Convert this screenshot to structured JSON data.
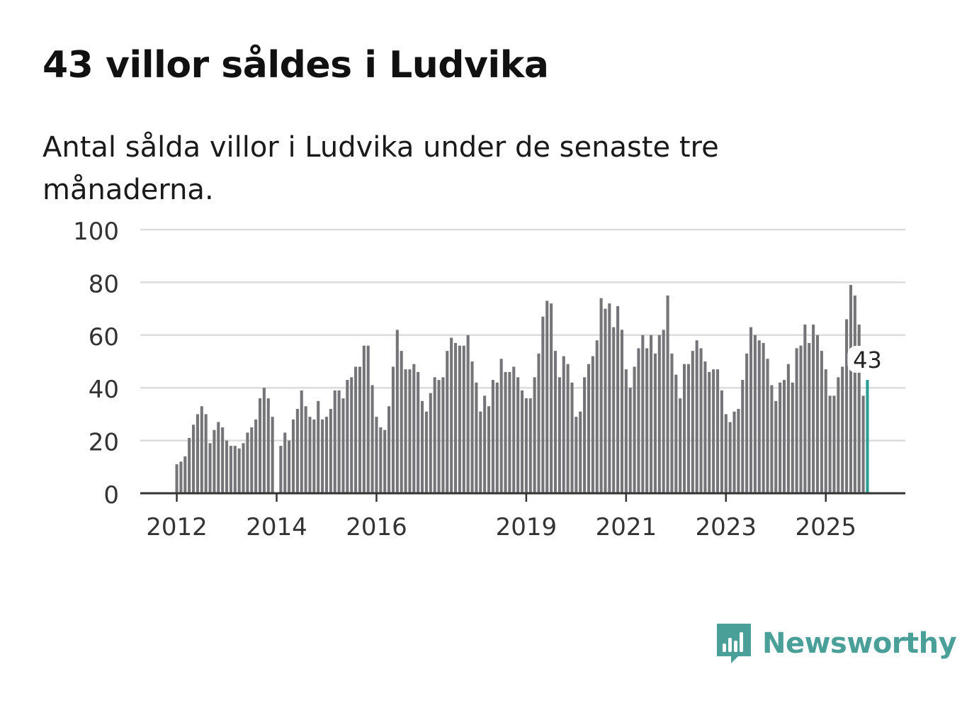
{
  "title": "43 villor såldes i Ludvika",
  "subtitle": "Antal sålda villor i Ludvika under de senaste tre månaderna.",
  "brand": {
    "name": "Newsworthy"
  },
  "colors": {
    "bar": "#747479",
    "highlight": "#2a9d95",
    "grid": "#dcdcdc",
    "axis": "#333333",
    "brand": "#4a9f98"
  },
  "chart_data": {
    "type": "bar",
    "title": "43 villor såldes i Ludvika",
    "subtitle": "Antal sålda villor i Ludvika under de senaste tre månaderna.",
    "xlabel": "",
    "ylabel": "",
    "ylim": [
      0,
      100
    ],
    "yticks": [
      0,
      20,
      40,
      60,
      80,
      100
    ],
    "xticks": [
      {
        "label": "2012",
        "index": 0
      },
      {
        "label": "2014",
        "index": 24
      },
      {
        "label": "2016",
        "index": 48
      },
      {
        "label": "2019",
        "index": 84
      },
      {
        "label": "2021",
        "index": 108
      },
      {
        "label": "2023",
        "index": 132
      },
      {
        "label": "2025",
        "index": 156
      }
    ],
    "grid": true,
    "highlight": {
      "index": 166,
      "label": "43"
    },
    "values": [
      11,
      12,
      14,
      21,
      26,
      30,
      33,
      30,
      19,
      24,
      27,
      25,
      20,
      18,
      18,
      17,
      19,
      23,
      25,
      28,
      36,
      40,
      36,
      29,
      0,
      18,
      23,
      20,
      28,
      32,
      39,
      33,
      29,
      28,
      35,
      28,
      29,
      32,
      39,
      39,
      36,
      43,
      44,
      48,
      48,
      56,
      56,
      41,
      29,
      25,
      24,
      33,
      48,
      62,
      54,
      47,
      47,
      49,
      46,
      35,
      31,
      38,
      44,
      43,
      44,
      54,
      59,
      57,
      56,
      56,
      60,
      50,
      42,
      31,
      37,
      33,
      43,
      42,
      51,
      46,
      46,
      48,
      44,
      39,
      36,
      36,
      44,
      53,
      67,
      73,
      72,
      54,
      44,
      52,
      49,
      42,
      29,
      31,
      44,
      49,
      52,
      58,
      74,
      70,
      72,
      63,
      71,
      62,
      47,
      40,
      48,
      55,
      60,
      55,
      60,
      53,
      60,
      62,
      75,
      53,
      45,
      36,
      49,
      49,
      54,
      58,
      55,
      50,
      46,
      47,
      47,
      39,
      30,
      27,
      31,
      32,
      43,
      53,
      63,
      60,
      58,
      57,
      51,
      41,
      35,
      42,
      43,
      49,
      42,
      55,
      56,
      64,
      57,
      64,
      60,
      54,
      47,
      37,
      37,
      44,
      48,
      66,
      79,
      75,
      64,
      37,
      43
    ]
  }
}
